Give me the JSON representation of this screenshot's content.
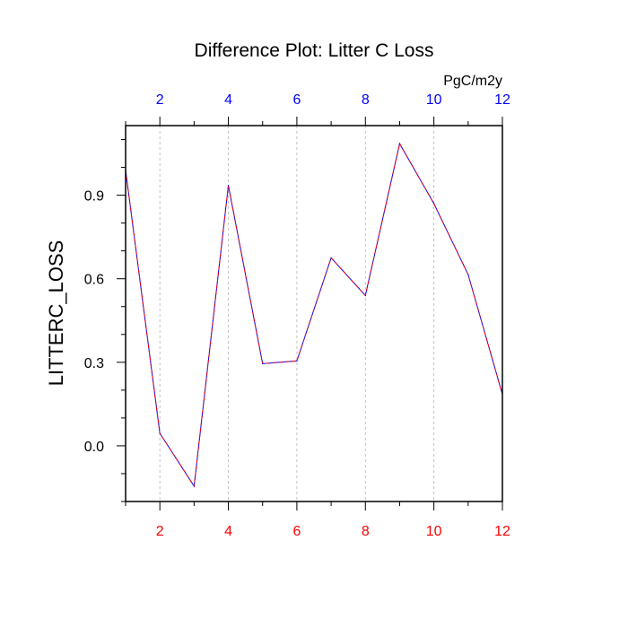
{
  "chart_data": {
    "type": "line",
    "title": "Difference Plot: Litter C Loss",
    "ylabel": "LITTERC_LOSS",
    "units": "PgC/m2y",
    "x": [
      1,
      2,
      3,
      4,
      5,
      6,
      7,
      8,
      9,
      10,
      11,
      12
    ],
    "series": [
      {
        "values": [
          0.99,
          0.045,
          -0.145,
          0.935,
          0.295,
          0.305,
          0.675,
          0.54,
          1.085,
          0.87,
          0.615,
          0.185
        ],
        "color_primary": "#0000ff",
        "color_secondary": "#ff0000",
        "style": "dashed"
      }
    ],
    "xlim": [
      1,
      12
    ],
    "ylim": [
      -0.2,
      1.15
    ],
    "xticks_bottom": [
      2,
      4,
      6,
      8,
      10,
      12
    ],
    "xticks_top": [
      2,
      4,
      6,
      8,
      10,
      12
    ],
    "yticks": [
      "0.0",
      "0.3",
      "0.6",
      "0.9"
    ],
    "ytick_values": [
      0.0,
      0.3,
      0.6,
      0.9
    ],
    "bottom_tick_color": "#ff0000",
    "top_tick_color": "#0000ff",
    "grid": "vertical-dashed"
  }
}
